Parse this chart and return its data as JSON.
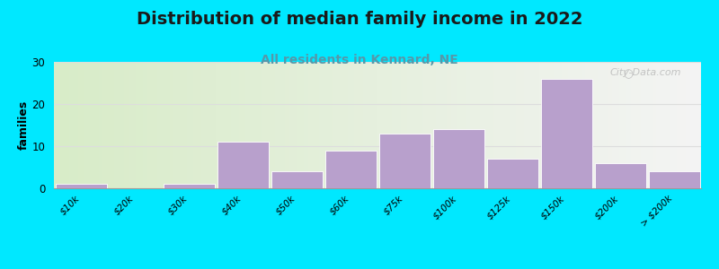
{
  "title": "Distribution of median family income in 2022",
  "subtitle": "All residents in Kennard, NE",
  "ylabel": "families",
  "categories": [
    "$10k",
    "$20k",
    "$30k",
    "$40k",
    "$50k",
    "$60k",
    "$75k",
    "$100k",
    "$125k",
    "$150k",
    "$200k",
    "> $200k"
  ],
  "values": [
    1,
    0,
    1,
    11,
    4,
    9,
    13,
    14,
    7,
    26,
    6,
    4
  ],
  "bar_color": "#b8a0cc",
  "bar_edge_color": "#ffffff",
  "ylim": [
    0,
    30
  ],
  "yticks": [
    0,
    10,
    20,
    30
  ],
  "bg_outer": "#00e8ff",
  "bg_grad_left": "#d8ecc8",
  "bg_grad_right": "#f4f4f4",
  "title_fontsize": 14,
  "subtitle_fontsize": 10,
  "subtitle_color": "#5599aa",
  "ylabel_fontsize": 9,
  "watermark_text": "City-Data.com",
  "tick_label_fontsize": 7.5,
  "grid_color": "#dddddd"
}
